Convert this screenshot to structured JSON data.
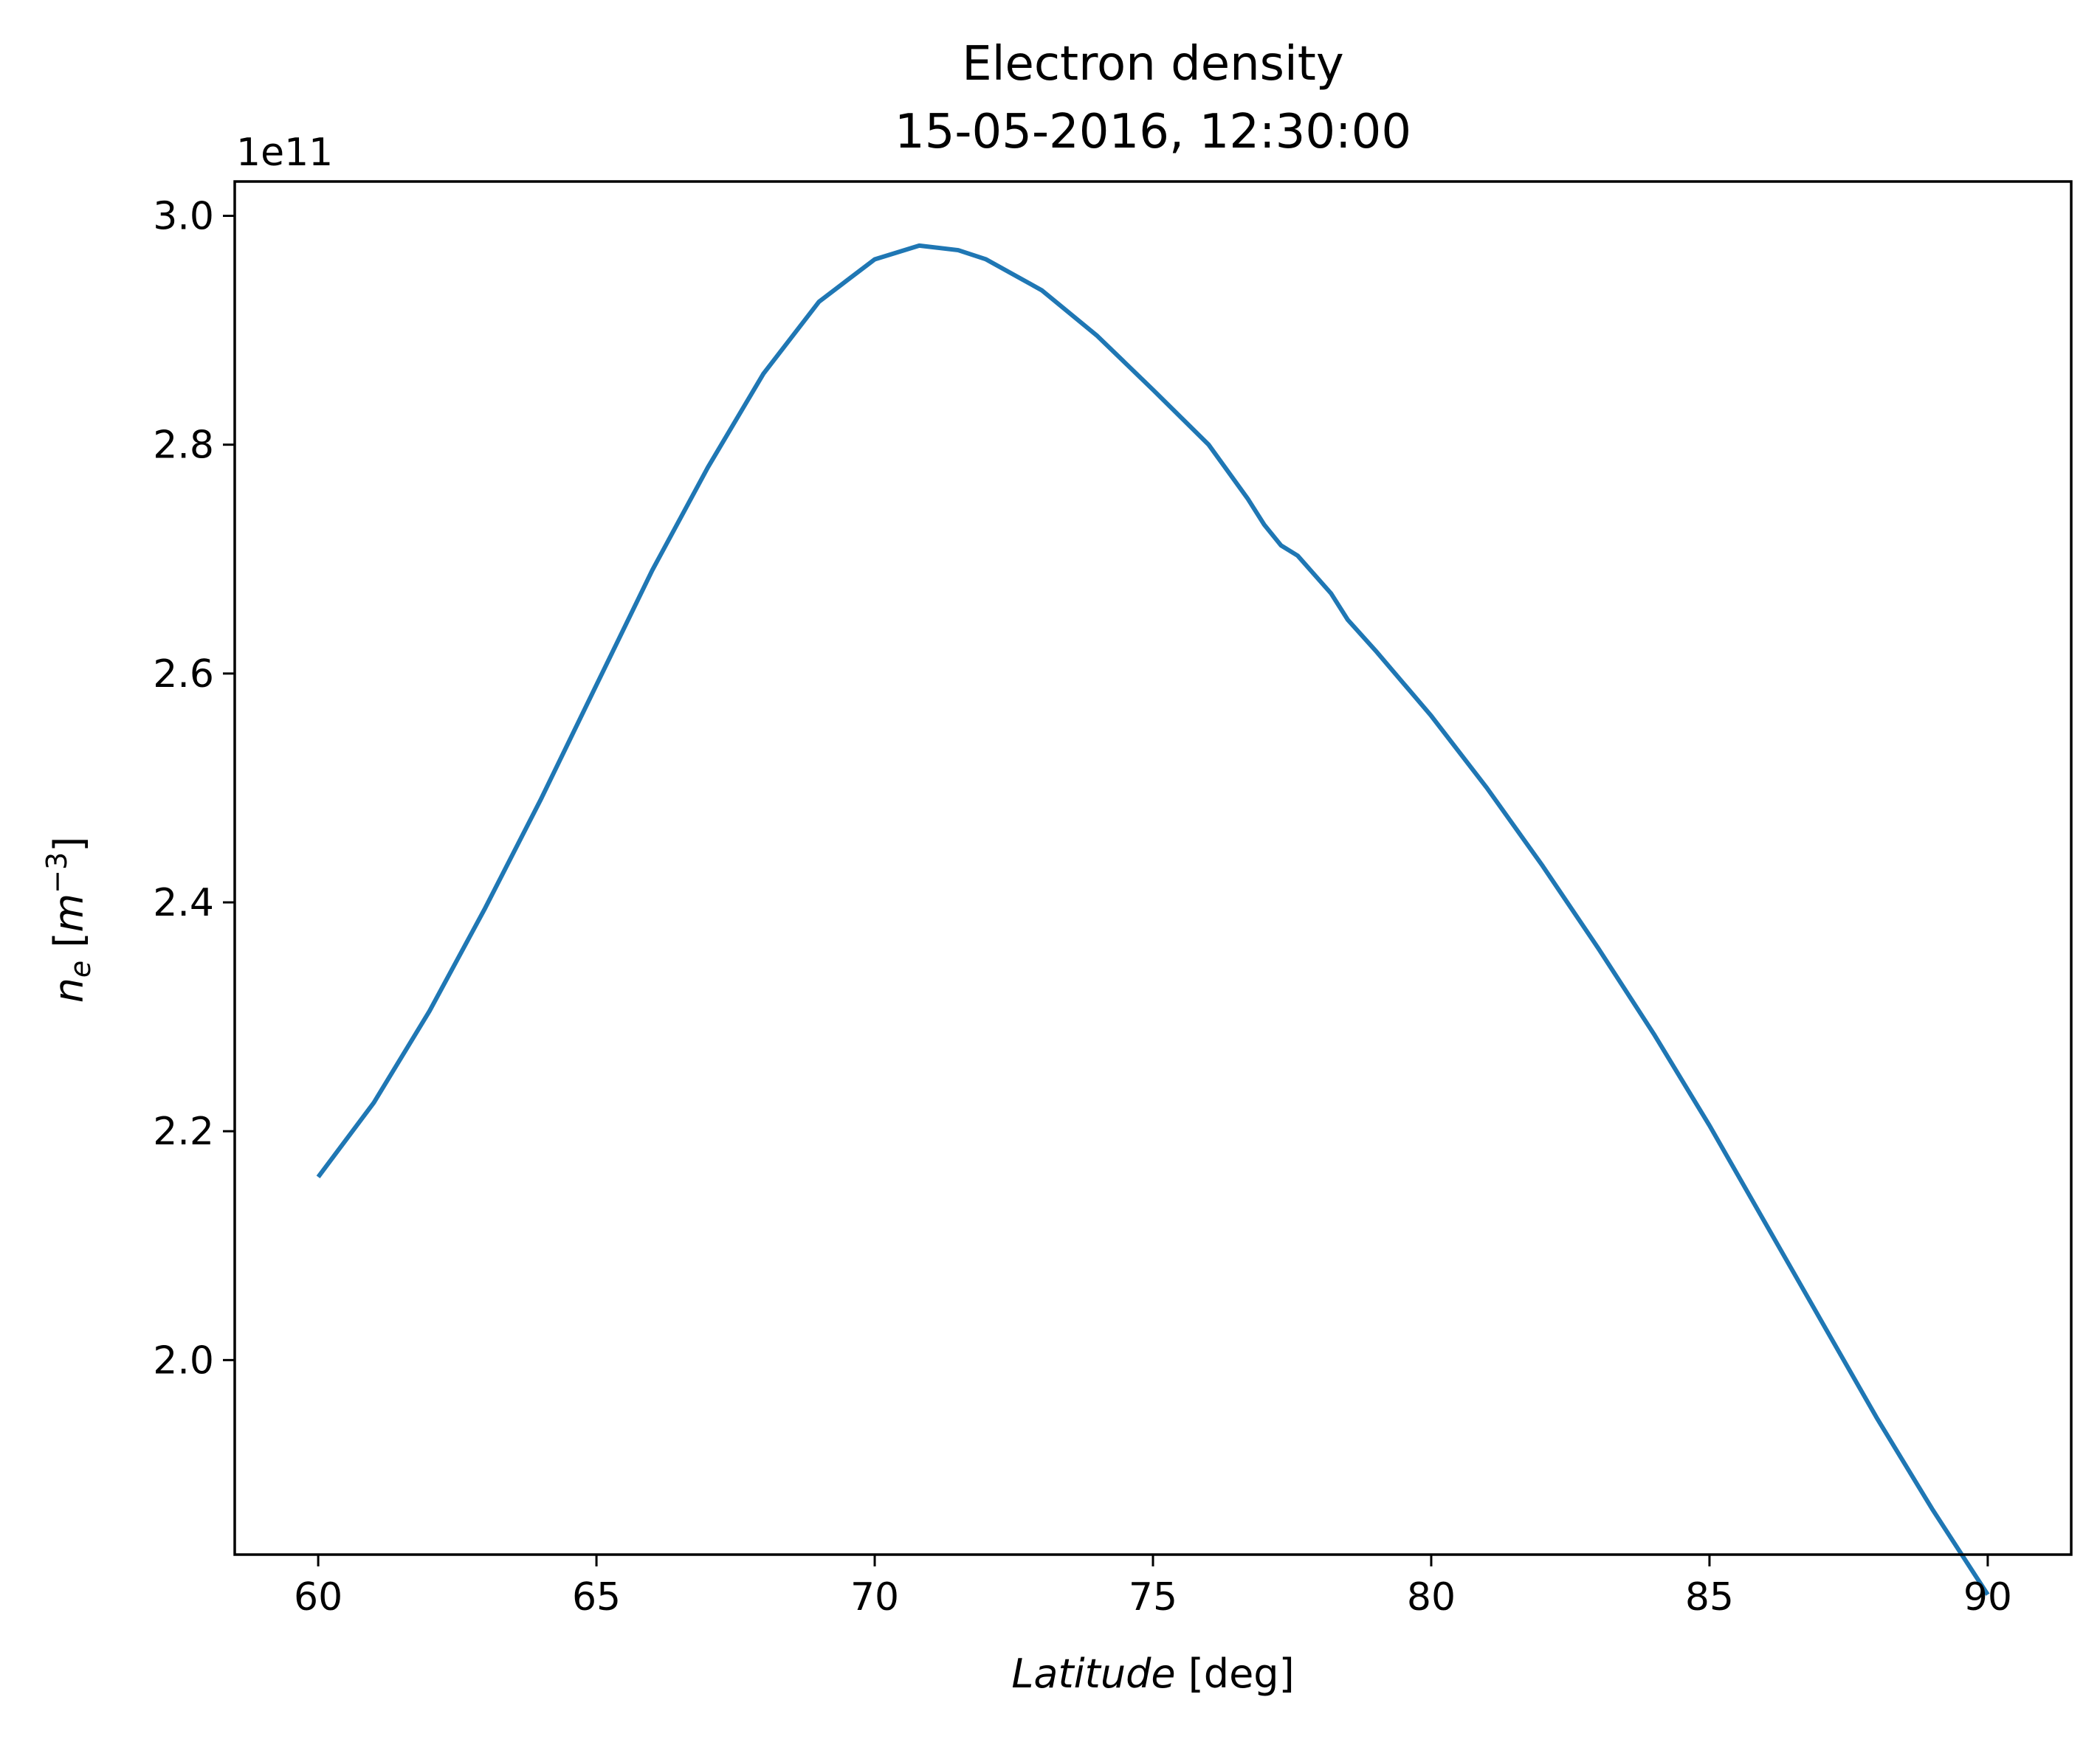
{
  "chart_data": {
    "type": "line",
    "title": [
      "Electron density",
      "15-05-2016, 12:30:00"
    ],
    "xlabel": {
      "italic": "Latitude",
      "plain": " [deg]"
    },
    "ylabel": {
      "italic": "n",
      "sub": "e",
      "unit_pre": " [",
      "unit_italic": "m",
      "unit_sup": "−3",
      "unit_post": "]"
    },
    "y_offset_label": "1e11",
    "y_scale": 100000000000.0,
    "xlim": [
      58.5,
      91.5
    ],
    "ylim": [
      1.83,
      3.03
    ],
    "x_ticks": [
      60,
      65,
      70,
      75,
      80,
      85,
      90
    ],
    "x_tick_labels": [
      "60",
      "65",
      "70",
      "75",
      "80",
      "85",
      "90"
    ],
    "y_ticks": [
      2.0,
      2.2,
      2.4,
      2.6,
      2.8,
      3.0
    ],
    "y_tick_labels": [
      "2.0",
      "2.2",
      "2.4",
      "2.6",
      "2.8",
      "3.0"
    ],
    "grid": false,
    "series": [
      {
        "color": "#1f77b4",
        "x": [
          60,
          61,
          62,
          63,
          64,
          65,
          66,
          67,
          68,
          69,
          70,
          70.8,
          71.5,
          72,
          73,
          74,
          75,
          76,
          76.7,
          77,
          77.3,
          77.6,
          78.2,
          78.5,
          79,
          80,
          81,
          82,
          83,
          84,
          85,
          86,
          87,
          88,
          89,
          90
        ],
        "y": [
          2.16,
          2.225,
          2.305,
          2.395,
          2.49,
          2.59,
          2.69,
          2.78,
          2.862,
          2.925,
          2.962,
          2.974,
          2.97,
          2.962,
          2.935,
          2.895,
          2.848,
          2.8,
          2.753,
          2.73,
          2.712,
          2.703,
          2.67,
          2.647,
          2.62,
          2.563,
          2.5,
          2.432,
          2.36,
          2.285,
          2.205,
          2.12,
          2.035,
          1.95,
          1.87,
          1.795
        ]
      }
    ]
  }
}
